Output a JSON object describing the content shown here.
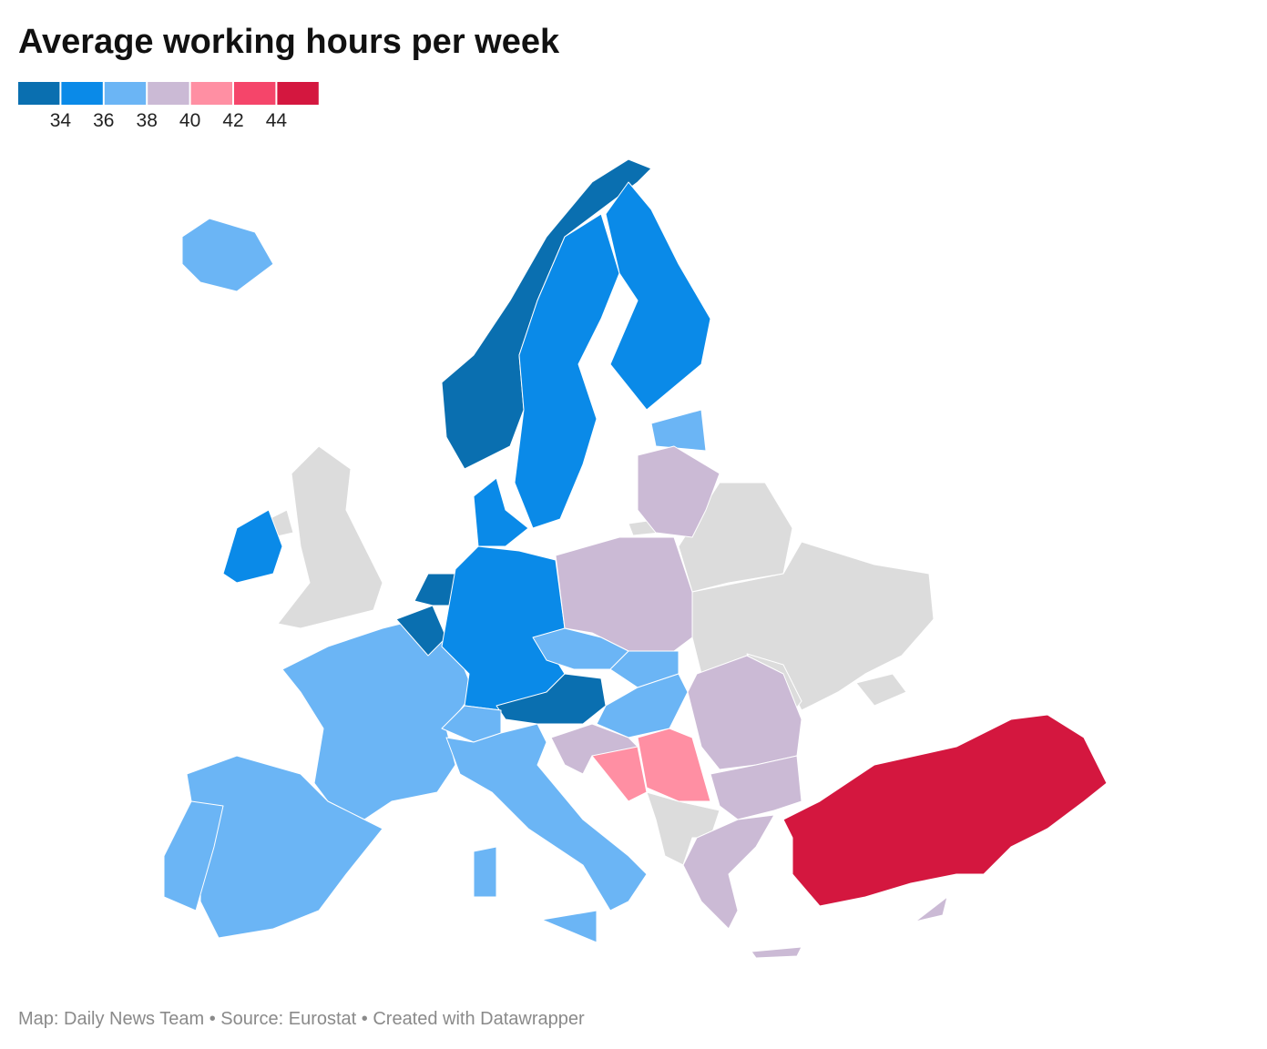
{
  "title": "Average working hours per week",
  "legend": {
    "colors": [
      "#0a6fb0",
      "#0a8ae8",
      "#6bb5f5",
      "#cbbad5",
      "#ff8fa3",
      "#f5456a",
      "#d4173f"
    ],
    "ticks": [
      34,
      36,
      38,
      40,
      42,
      44
    ]
  },
  "map": {
    "no_data_color": "#dcdcdc"
  },
  "footer": "Map: Daily News Team • Source: Eurostat • Created with Datawrapper"
}
